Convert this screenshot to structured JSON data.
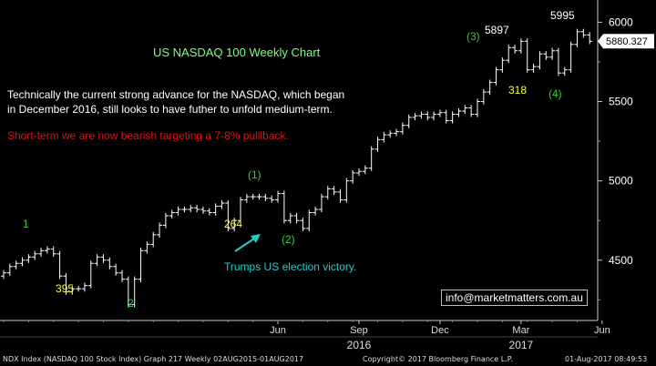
{
  "chart_data": {
    "type": "ohlc",
    "title": "US NASDAQ 100 Weekly Chart",
    "ylim": [
      4120,
      6140
    ],
    "yticks": [
      4500,
      5000,
      5500,
      6000
    ],
    "ytick_labels": [
      "4500",
      "5000",
      "5500",
      "6000"
    ],
    "xtick_labels": [
      {
        "label": "Jun",
        "week": 44
      },
      {
        "label": "Sep",
        "week": 57
      },
      {
        "label": "Dec",
        "week": 70
      },
      {
        "label": "Mar",
        "week": 83
      },
      {
        "label": "Jun",
        "week": 96
      }
    ],
    "year_labels": [
      {
        "label": "2016",
        "week": 57
      },
      {
        "label": "2017",
        "week": 83
      }
    ],
    "weekly_close": [
      4420,
      4460,
      4480,
      4500,
      4520,
      4540,
      4560,
      4570,
      4540,
      4400,
      4300,
      4320,
      4320,
      4340,
      4480,
      4520,
      4500,
      4460,
      4420,
      4380,
      4220,
      4380,
      4560,
      4600,
      4660,
      4720,
      4780,
      4800,
      4820,
      4820,
      4830,
      4820,
      4810,
      4800,
      4840,
      4860,
      4700,
      4750,
      4880,
      4900,
      4900,
      4900,
      4890,
      4880,
      4920,
      4750,
      4780,
      4750,
      4700,
      4800,
      4820,
      4900,
      4950,
      4930,
      4880,
      5000,
      5050,
      5060,
      5080,
      5200,
      5260,
      5290,
      5300,
      5310,
      5350,
      5400,
      5410,
      5420,
      5400,
      5420,
      5430,
      5380,
      5420,
      5440,
      5460,
      5420,
      5500,
      5560,
      5620,
      5700,
      5760,
      5840,
      5820,
      5880,
      5700,
      5720,
      5800,
      5780,
      5820,
      5680,
      5700,
      5860,
      5940,
      5920,
      5880
    ],
    "current_price": 5880.327,
    "current_price_label": "5880.327",
    "peak_label": "5995",
    "peak_value": 5995
  },
  "annotations": {
    "wave_1": "1",
    "wave_2": "2",
    "low_395": "395",
    "wave_1_paren": "(1)",
    "wave_2_paren": "(2)",
    "val_264": "264",
    "wave_3_paren": "(3)",
    "val_5897": "5897",
    "val_318": "318",
    "wave_4_paren": "(4)",
    "commentary": "Technically the current strong advance for the NASDAQ, which began\nin December 2016, still looks to have futher to unfold medium-term.",
    "warning": "Short-term we are now bearish targeting a 7-8% pulllback.",
    "election_note": "Trumps US election victory.",
    "email": "info@marketmatters.com.au"
  },
  "footer": {
    "left": "NDX Index (NASDAQ 100 Stock Index) Graph 217  Weekly 02AUG2015-01AUG2017",
    "center": "Copyright© 2017 Bloomberg Finance L.P.",
    "right": "01-Aug-2017 08:49:53"
  },
  "colors": {
    "background": "#000000",
    "price_bars": "#ffffff",
    "wave_green": "#33cc33",
    "value_yellow": "#ffff33",
    "title_green": "#7fff7f",
    "warning_red": "#dd1111",
    "arrow_cyan": "#22cccc",
    "price_tag": "#ffffff"
  }
}
